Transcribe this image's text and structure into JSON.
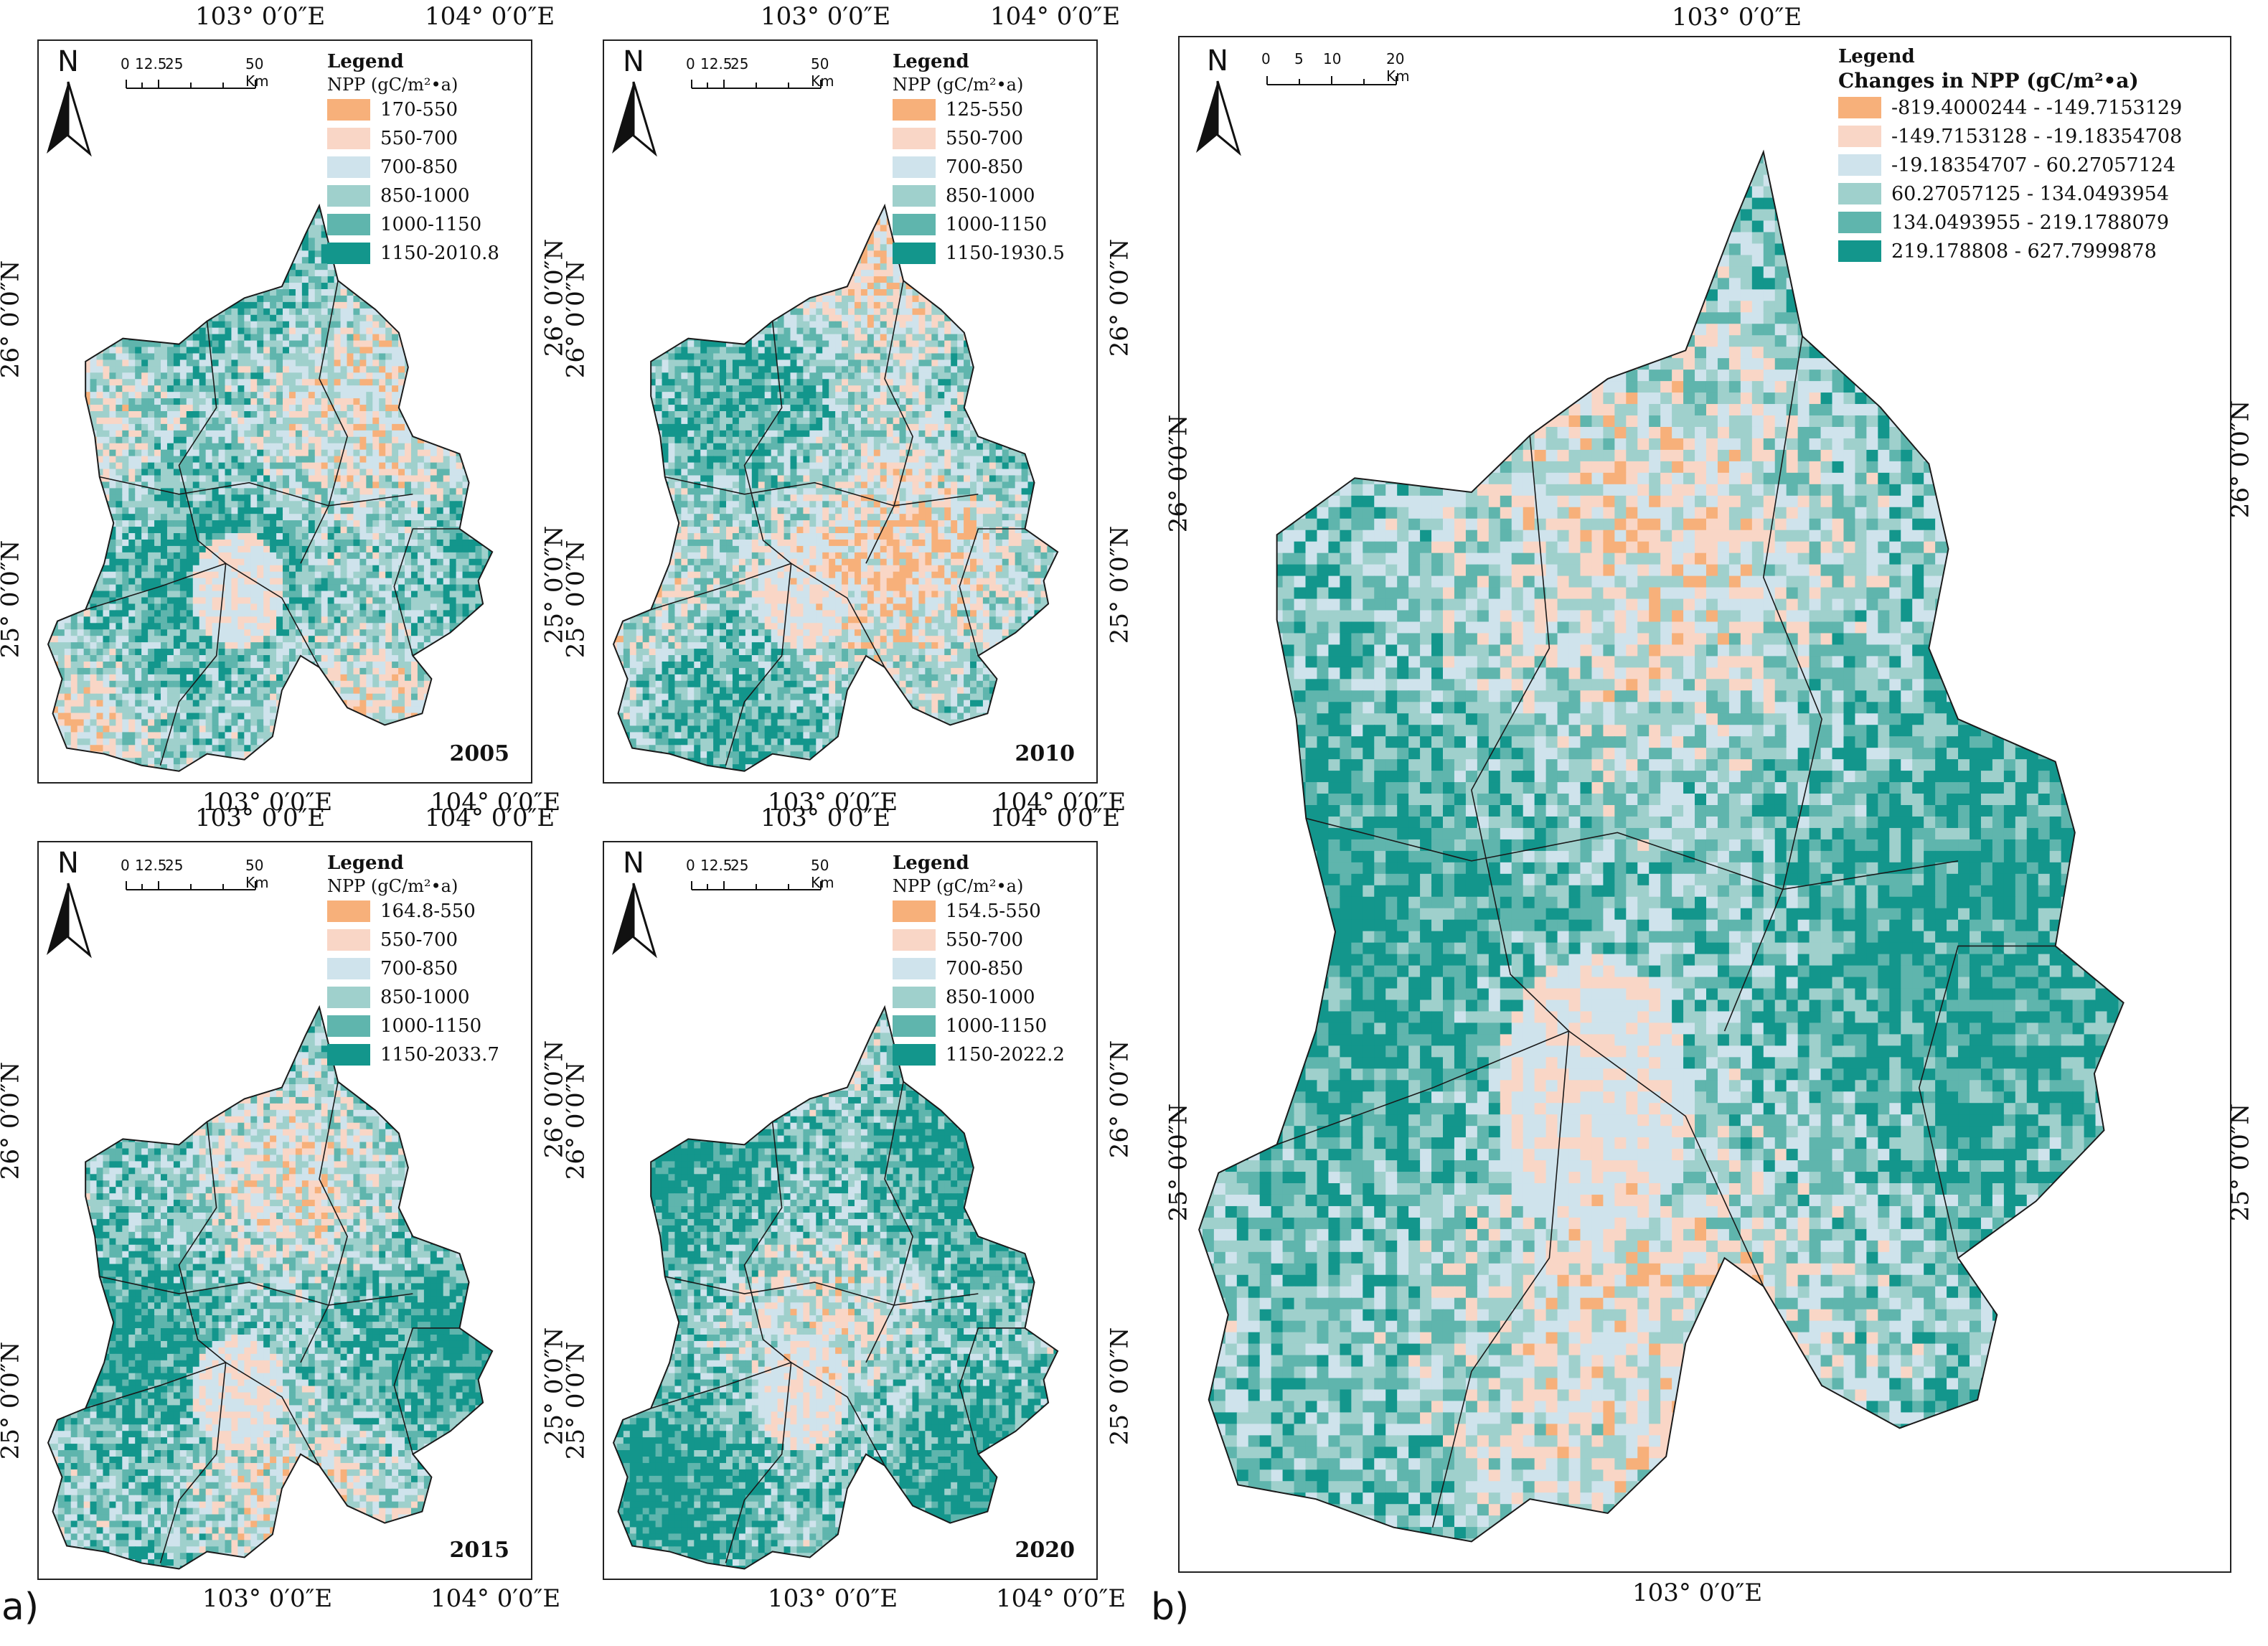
{
  "panel_labels": {
    "a": "a)",
    "b": "b)"
  },
  "small_maps": [
    {
      "year": "2005",
      "top_lon": [
        "103° 0′0″E",
        "104° 0′0″E"
      ],
      "bottom_lon": [
        "103° 0′0″E",
        "104° 0′0″E"
      ],
      "left_lat": [
        "26° 0′0″N",
        "25° 0′0″N"
      ],
      "right_lat": [
        "26° 0′0″N",
        "25° 0′0″N"
      ],
      "legend_title": "Legend",
      "legend_subtitle": "NPP (gC/m²•a)",
      "classes": [
        "170-550",
        "550-700",
        "700-850",
        "850-1000",
        "1000-1150",
        "1150-2010.8"
      ],
      "scale_labels": [
        "0",
        "12.5",
        "25",
        "50 Km"
      ],
      "north": "N"
    },
    {
      "year": "2010",
      "top_lon": [
        "103° 0′0″E",
        "104° 0′0″E"
      ],
      "bottom_lon": [
        "103° 0′0″E",
        "104° 0′0″E"
      ],
      "left_lat": [
        "26° 0′0″N",
        "25° 0′0″N"
      ],
      "right_lat": [
        "26° 0′0″N",
        "25° 0′0″N"
      ],
      "legend_title": "Legend",
      "legend_subtitle": "NPP (gC/m²•a)",
      "classes": [
        "125-550",
        "550-700",
        "700-850",
        "850-1000",
        "1000-1150",
        "1150-1930.5"
      ],
      "scale_labels": [
        "0",
        "12.5",
        "25",
        "50 Km"
      ],
      "north": "N"
    },
    {
      "year": "2015",
      "top_lon": [
        "103° 0′0″E",
        "104° 0′0″E"
      ],
      "bottom_lon": [
        "103° 0′0″E",
        "104° 0′0″E"
      ],
      "left_lat": [
        "26° 0′0″N",
        "25° 0′0″N"
      ],
      "right_lat": [
        "26° 0′0″N",
        "25° 0′0″N"
      ],
      "legend_title": "Legend",
      "legend_subtitle": "NPP (gC/m²•a)",
      "classes": [
        "164.8-550",
        "550-700",
        "700-850",
        "850-1000",
        "1000-1150",
        "1150-2033.7"
      ],
      "scale_labels": [
        "0",
        "12.5",
        "25",
        "50 Km"
      ],
      "north": "N"
    },
    {
      "year": "2020",
      "top_lon": [
        "103° 0′0″E",
        "104° 0′0″E"
      ],
      "bottom_lon": [
        "103° 0′0″E",
        "104° 0′0″E"
      ],
      "left_lat": [
        "26° 0′0″N",
        "25° 0′0″N"
      ],
      "right_lat": [
        "26° 0′0″N",
        "25° 0′0″N"
      ],
      "legend_title": "Legend",
      "legend_subtitle": "NPP (gC/m²•a)",
      "classes": [
        "154.5-550",
        "550-700",
        "700-850",
        "850-1000",
        "1000-1150",
        "1150-2022.2"
      ],
      "scale_labels": [
        "0",
        "12.5",
        "25",
        "50 Km"
      ],
      "north": "N"
    }
  ],
  "change_map": {
    "top_lon": "103° 0′0″E",
    "bottom_lon": "103° 0′0″E",
    "left_lat": [
      "26° 0′0″N",
      "25° 0′0″N"
    ],
    "right_lat": [
      "26° 0′0″N",
      "25° 0′0″N"
    ],
    "legend_title": "Legend",
    "legend_subtitle": "Changes in NPP (gC/m²•a)",
    "classes": [
      "-819.4000244 - -149.7153129",
      "-149.7153128 - -19.18354708",
      "-19.18354707 - 60.27057124",
      "60.27057125 - 134.0493954",
      "134.0493955 - 219.1788079",
      "219.178808 - 627.7999878"
    ],
    "scale_labels": [
      "0",
      "5",
      "10",
      "20 Km"
    ],
    "north": "N"
  },
  "colors": {
    "class_colors": [
      "#f7b07a",
      "#f9d6c6",
      "#cfe3ec",
      "#9fd0cc",
      "#5fb5ad",
      "#13968c"
    ],
    "boundary": "#1a1a1a",
    "border_highlight": "#c8712a"
  }
}
